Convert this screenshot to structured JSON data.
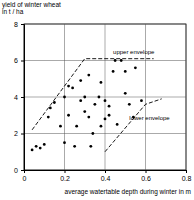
{
  "chart_data": {
    "type": "scatter",
    "y_label": [
      "yield of winter wheat",
      "in t / ha"
    ],
    "x_label": "average watertable depth during winter in m",
    "xlim": [
      0,
      0.8
    ],
    "ylim": [
      0,
      8
    ],
    "xticks": [
      0,
      0.2,
      0.4,
      0.6,
      0.8
    ],
    "yticks": [
      0,
      2,
      4,
      6,
      8
    ],
    "grid": true,
    "series": [
      {
        "type": "scatter",
        "color": "#000000",
        "marker": "circle",
        "x": [
          0.04,
          0.06,
          0.08,
          0.1,
          0.12,
          0.13,
          0.15,
          0.18,
          0.2,
          0.2,
          0.22,
          0.22,
          0.24,
          0.25,
          0.26,
          0.28,
          0.28,
          0.3,
          0.3,
          0.32,
          0.32,
          0.33,
          0.34,
          0.35,
          0.37,
          0.38,
          0.38,
          0.4,
          0.4,
          0.42,
          0.42,
          0.44,
          0.45,
          0.46,
          0.48,
          0.5,
          0.5,
          0.52,
          0.54,
          0.55,
          0.58
        ],
        "values": [
          1.1,
          1.3,
          1.2,
          1.4,
          2.9,
          3.4,
          3.7,
          2.4,
          4.0,
          1.5,
          3.0,
          4.6,
          4.5,
          1.3,
          2.4,
          4.9,
          3.8,
          4.0,
          3.2,
          5.2,
          2.9,
          1.3,
          2.0,
          3.6,
          4.0,
          4.8,
          2.4,
          3.8,
          2.8,
          3.0,
          3.5,
          5.4,
          6.0,
          2.5,
          6.0,
          5.4,
          4.2,
          3.6,
          2.9,
          5.6,
          3.8
        ]
      },
      {
        "type": "line",
        "color": "#000000",
        "line_style": "dashed",
        "x": [
          0.04,
          0.3,
          0.64
        ],
        "values": [
          2.2,
          6.1,
          6.1
        ]
      },
      {
        "type": "line",
        "color": "#000000",
        "line_style": "dashed",
        "x": [
          0.4,
          0.6,
          0.68
        ],
        "values": [
          1.0,
          3.6,
          3.9
        ]
      }
    ],
    "annotations": [
      {
        "text": "upper envelope",
        "x": 0.44,
        "y": 6.35
      },
      {
        "text": "lower envelope",
        "x": 0.52,
        "y": 2.75
      }
    ]
  }
}
